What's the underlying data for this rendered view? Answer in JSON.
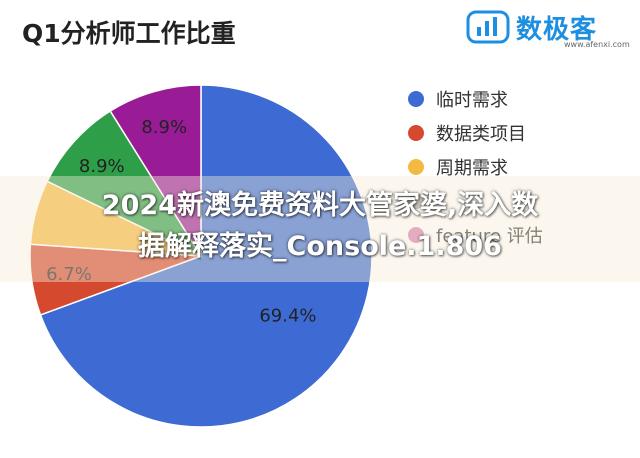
{
  "brand": {
    "name": "数极客",
    "url": "www.afenxi.com",
    "color": "#1e8fe0"
  },
  "chart_data": {
    "type": "pie",
    "title": "Q1分析师工作比重",
    "slices": [
      {
        "label": "临时需求",
        "value": 69.4,
        "color": "#3d6bd3",
        "display": "69.4%"
      },
      {
        "label": "数据类项目",
        "value": 6.7,
        "color": "#d5492f",
        "display": "6.7%"
      },
      {
        "label": "周期需求",
        "value": 6.1,
        "color": "#f4b942",
        "display": ""
      },
      {
        "label": "feature 评估",
        "value": 8.9,
        "color": "#2e9e48",
        "display": "8.9%"
      },
      {
        "label": "",
        "value": 8.9,
        "color": "#991c96",
        "display": "8.9%"
      }
    ],
    "legend": {
      "placement": "right",
      "items": [
        {
          "label": "临时需求",
          "color": "#3d6bd3"
        },
        {
          "label": "数据类项目",
          "color": "#d5492f"
        },
        {
          "label": "周期需求",
          "color": "#f4b942"
        },
        {
          "label": "",
          "color": "#a9a9a9"
        },
        {
          "label": "feature 评估",
          "color": "#d77fb0"
        }
      ]
    }
  },
  "overlay": {
    "line1": "2024新澳免费资料大管家婆,深入数",
    "line2": "据解释落实_Console.1.806"
  }
}
